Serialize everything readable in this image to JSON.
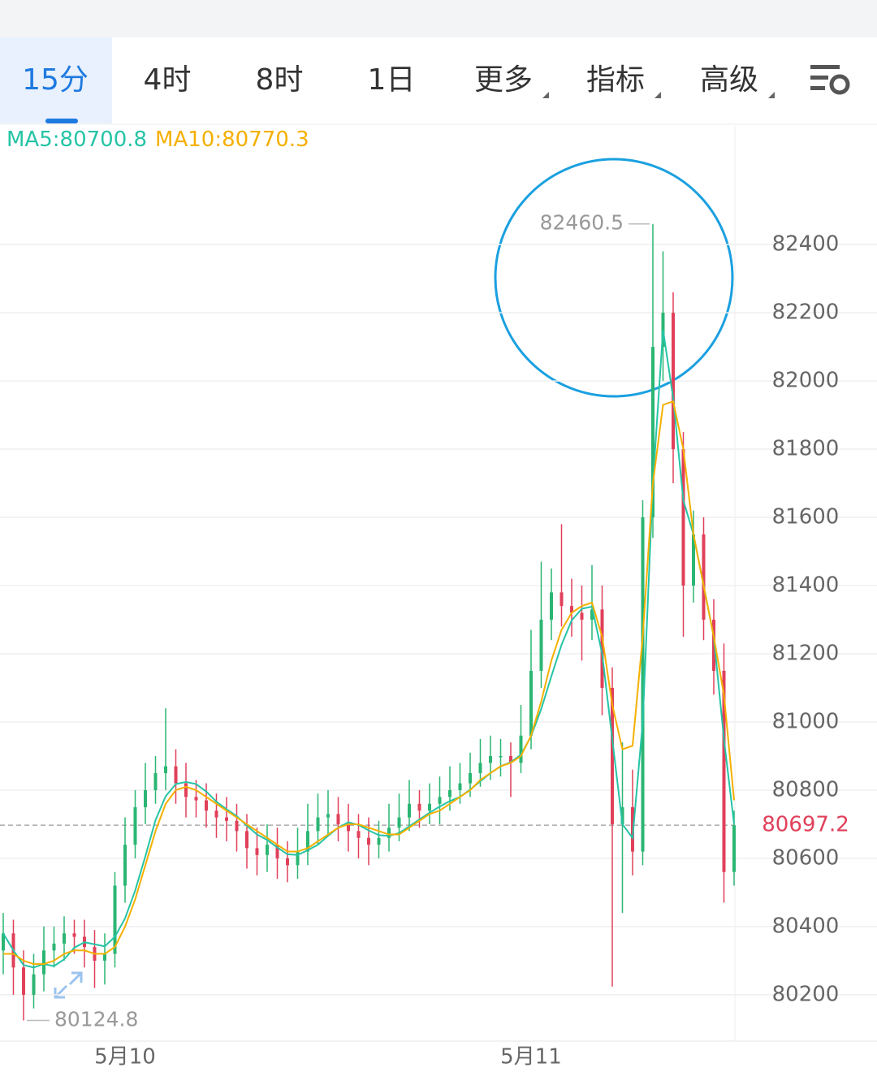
{
  "tabs": [
    "15分",
    "4时",
    "8时",
    "1日",
    "更多",
    "指标",
    "高级"
  ],
  "chart_data": {
    "type": "candlestick",
    "categories": [
      null,
      null,
      null,
      null,
      null,
      null,
      null,
      null,
      null,
      null,
      null,
      null,
      "5月10",
      null,
      null,
      null,
      null,
      null,
      null,
      null,
      null,
      null,
      null,
      null,
      null,
      null,
      null,
      null,
      null,
      null,
      null,
      null,
      null,
      null,
      null,
      null,
      null,
      null,
      null,
      null,
      null,
      null,
      null,
      null,
      null,
      null,
      null,
      null,
      null,
      null,
      null,
      null,
      "5月11",
      null,
      null,
      null,
      null,
      null,
      null,
      null,
      null,
      null,
      null,
      null,
      null,
      null,
      null,
      null,
      null,
      null,
      null,
      null,
      null
    ],
    "open": [
      80330,
      80380,
      80280,
      80200,
      80260,
      80330,
      80350,
      80380,
      80370,
      80340,
      80300,
      80320,
      80520,
      80640,
      80750,
      80800,
      80850,
      80870,
      80820,
      80780,
      80770,
      80740,
      80720,
      80710,
      80680,
      80630,
      80610,
      80640,
      80600,
      80580,
      80620,
      80680,
      80720,
      80730,
      80700,
      80680,
      80660,
      80640,
      80660,
      80690,
      80720,
      80760,
      80740,
      80760,
      80780,
      80800,
      80820,
      80850,
      80880,
      80900,
      80900,
      80880,
      80960,
      81150,
      81300,
      81380,
      81340,
      81320,
      81300,
      81330,
      81100,
      80700,
      80750,
      80620,
      81600,
      82100,
      82200,
      81800,
      81400,
      81550,
      81300,
      81150,
      80560
    ],
    "high": [
      80440,
      80420,
      80330,
      80320,
      80400,
      80400,
      80430,
      80420,
      80420,
      80390,
      80380,
      80560,
      80720,
      80800,
      80880,
      80900,
      81040,
      80920,
      80880,
      80830,
      80820,
      80790,
      80780,
      80760,
      80730,
      80690,
      80700,
      80690,
      80650,
      80690,
      80760,
      80790,
      80800,
      80780,
      80760,
      80730,
      80720,
      80710,
      80760,
      80790,
      80830,
      80800,
      80820,
      80840,
      80870,
      80880,
      80910,
      80950,
      80960,
      80950,
      80940,
      81050,
      81270,
      81470,
      81450,
      81580,
      81420,
      81400,
      81460,
      81400,
      81160,
      80940,
      80860,
      81650,
      82460.5,
      82380,
      82260,
      81850,
      81620,
      81600,
      81360,
      81230,
      80740
    ],
    "low": [
      80260,
      80200,
      80124.8,
      80160,
      80210,
      80280,
      80300,
      80320,
      80280,
      80220,
      80230,
      80280,
      80470,
      80600,
      80700,
      80760,
      80800,
      80760,
      80720,
      80720,
      80690,
      80660,
      80650,
      80620,
      80570,
      80550,
      80560,
      80540,
      80530,
      80540,
      80580,
      80640,
      80670,
      80650,
      80620,
      80600,
      80580,
      80600,
      80620,
      80650,
      80680,
      80690,
      80700,
      80700,
      80740,
      80760,
      80780,
      80810,
      80830,
      80840,
      80780,
      80850,
      80920,
      81100,
      81240,
      81280,
      81250,
      81180,
      81240,
      81020,
      80224,
      80440,
      80550,
      80580,
      81540,
      82000,
      81700,
      81250,
      81350,
      81240,
      81080,
      80470,
      80520
    ],
    "close": [
      80380,
      80280,
      80200,
      80260,
      80330,
      80350,
      80380,
      80370,
      80340,
      80300,
      80320,
      80520,
      80640,
      80750,
      80800,
      80850,
      80870,
      80820,
      80780,
      80770,
      80740,
      80720,
      80710,
      80680,
      80630,
      80610,
      80640,
      80600,
      80580,
      80620,
      80680,
      80720,
      80730,
      80700,
      80680,
      80660,
      80640,
      80660,
      80690,
      80720,
      80760,
      80740,
      80760,
      80780,
      80800,
      80820,
      80850,
      80880,
      80900,
      80900,
      80880,
      80960,
      81150,
      81300,
      81380,
      81340,
      81320,
      81300,
      81330,
      81100,
      80700,
      80750,
      80620,
      81600,
      82100,
      82200,
      81800,
      81400,
      81550,
      81300,
      81150,
      80560,
      80697.2
    ],
    "up_color": "#2bb673",
    "down_color": "#e0405a",
    "series": [
      {
        "name": "MA5:80700.8",
        "color": "#26c4a6",
        "values": [
          80380,
          80330,
          80287,
          80280,
          80290,
          80284,
          80304,
          80338,
          80354,
          80348,
          80342,
          80370,
          80424,
          80506,
          80606,
          80712,
          80782,
          80818,
          80824,
          80818,
          80796,
          80766,
          80744,
          80724,
          80696,
          80670,
          80654,
          80632,
          80612,
          80610,
          80624,
          80640,
          80666,
          80690,
          80706,
          80698,
          80682,
          80668,
          80666,
          80674,
          80694,
          80714,
          80734,
          80752,
          80768,
          80780,
          80802,
          80826,
          80850,
          80870,
          80882,
          80904,
          80958,
          81038,
          81134,
          81226,
          81298,
          81332,
          81338,
          81200,
          80950,
          80700,
          80660,
          81000,
          81700,
          82150,
          81950,
          81650,
          81550,
          81400,
          81250,
          80950,
          80700.8
        ]
      },
      {
        "name": "MA10:80770.3",
        "color": "#f5b000",
        "values": [
          80320,
          80320,
          80300,
          80290,
          80290,
          80300,
          80320,
          80330,
          80330,
          80320,
          80320,
          80340,
          80400,
          80480,
          80580,
          80680,
          80760,
          80800,
          80810,
          80800,
          80780,
          80760,
          80740,
          80720,
          80700,
          80680,
          80660,
          80640,
          80620,
          80620,
          80630,
          80650,
          80670,
          80690,
          80700,
          80700,
          80690,
          80680,
          80670,
          80670,
          80690,
          80710,
          80730,
          80740,
          80760,
          80780,
          80800,
          80830,
          80850,
          80870,
          80880,
          80900,
          80960,
          81060,
          81180,
          81270,
          81320,
          81340,
          81350,
          81250,
          81050,
          80920,
          80930,
          81250,
          81700,
          81930,
          81940,
          81800,
          81550,
          81400,
          81250,
          81080,
          80770.3
        ]
      }
    ],
    "ylim": [
      80064,
      82748
    ],
    "yticks": [
      80200,
      80400,
      80600,
      80800,
      81000,
      81200,
      81400,
      81600,
      81800,
      82000,
      82200,
      82400
    ],
    "grid": true,
    "current_price": 80697.2,
    "max_label": 82460.5,
    "min_label": 80124.8
  }
}
